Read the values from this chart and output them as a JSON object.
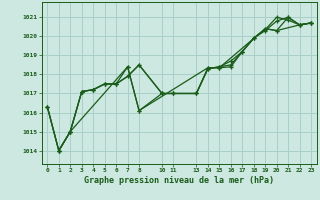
{
  "title": "Graphe pression niveau de la mer (hPa)",
  "bg_color": "#cce8e0",
  "grid_color": "#a8cfc8",
  "line_color": "#1a5c1a",
  "xlim": [
    -0.5,
    23.5
  ],
  "ylim": [
    1013.3,
    1021.8
  ],
  "xticks": [
    0,
    1,
    2,
    3,
    4,
    5,
    6,
    7,
    8,
    10,
    11,
    13,
    14,
    15,
    16,
    17,
    18,
    19,
    20,
    21,
    22,
    23
  ],
  "yticks": [
    1014,
    1015,
    1016,
    1017,
    1018,
    1019,
    1020,
    1021
  ],
  "lines": [
    {
      "x": [
        0,
        1,
        2,
        3,
        4,
        5,
        6,
        7,
        8,
        10,
        11,
        13,
        14,
        15,
        16,
        17,
        18,
        19,
        20,
        21,
        22,
        23
      ],
      "y": [
        1016.3,
        1014.0,
        1015.0,
        1017.1,
        1017.2,
        1017.5,
        1017.5,
        1017.9,
        1018.5,
        1017.0,
        1017.0,
        1017.0,
        1018.3,
        1018.4,
        1018.7,
        1019.2,
        1019.9,
        1020.3,
        1020.8,
        1021.0,
        1020.6,
        1020.7
      ],
      "linestyle": "-"
    },
    {
      "x": [
        0,
        1,
        2,
        3,
        4,
        5,
        6,
        7,
        8,
        10,
        11,
        13,
        14,
        15,
        16,
        17,
        18,
        19,
        20,
        21,
        22,
        23
      ],
      "y": [
        1016.3,
        1014.0,
        1015.0,
        1017.1,
        1017.2,
        1017.5,
        1017.5,
        1018.4,
        1016.1,
        1017.0,
        1017.0,
        1017.0,
        1018.3,
        1018.4,
        1018.5,
        1019.2,
        1019.9,
        1020.35,
        1021.0,
        1020.85,
        1020.6,
        1020.7
      ],
      "linestyle": "-"
    },
    {
      "x": [
        0,
        1,
        2,
        3,
        4,
        5,
        6,
        7,
        8,
        10,
        11,
        13,
        14,
        15,
        16,
        17,
        18,
        19,
        20,
        21,
        22,
        23
      ],
      "y": [
        1016.3,
        1014.0,
        1015.0,
        1017.1,
        1017.2,
        1017.5,
        1017.5,
        1017.9,
        1018.5,
        1017.0,
        1017.0,
        1017.0,
        1018.35,
        1018.35,
        1018.4,
        1019.2,
        1019.9,
        1020.4,
        1020.3,
        1021.0,
        1020.6,
        1020.7
      ],
      "linestyle": "-"
    },
    {
      "x": [
        1,
        2,
        7,
        8,
        14,
        15,
        19,
        20,
        22,
        23
      ],
      "y": [
        1014.0,
        1015.0,
        1018.4,
        1016.1,
        1018.35,
        1018.35,
        1020.4,
        1020.3,
        1020.6,
        1020.7
      ],
      "linestyle": "-"
    }
  ]
}
